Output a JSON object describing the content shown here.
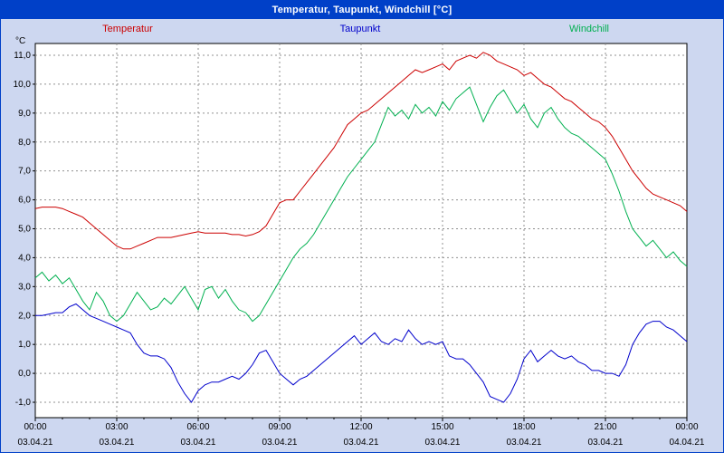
{
  "window": {
    "title": "Temperatur, Taupunkt, Windchill [°C]"
  },
  "colors": {
    "titlebar_bg": "#0040c8",
    "frame_bg": "#cdd7f0",
    "plot_bg": "#ffffff",
    "plot_border": "#000000",
    "grid": "#909090",
    "temperatur": "#cc0000",
    "taupunkt": "#0000cc",
    "windchill": "#00b050"
  },
  "legend": {
    "items": [
      {
        "label": "Temperatur",
        "color": "#cc0000"
      },
      {
        "label": "Taupunkt",
        "color": "#0000cc"
      },
      {
        "label": "Windchill",
        "color": "#00b050"
      }
    ]
  },
  "axes": {
    "unit_label": "°C"
  },
  "chart_data": {
    "type": "line",
    "title": "Temperatur, Taupunkt, Windchill [°C]",
    "grid": "dashed",
    "legend_position": "top",
    "ylim": [
      -1.0,
      11.0
    ],
    "y_tick_step": 1.0,
    "y_tick_labels": [
      "-1,0",
      "0,0",
      "1,0",
      "2,0",
      "3,0",
      "4,0",
      "5,0",
      "6,0",
      "7,0",
      "8,0",
      "9,0",
      "10,0",
      "11,0"
    ],
    "x_start_hour": 0,
    "x_step_hours": 0.25,
    "x_total_hours": 24,
    "x_ticks": [
      {
        "hour": 0,
        "time": "00:00",
        "date": "03.04.21"
      },
      {
        "hour": 3,
        "time": "03:00",
        "date": "03.04.21"
      },
      {
        "hour": 6,
        "time": "06:00",
        "date": "03.04.21"
      },
      {
        "hour": 9,
        "time": "09:00",
        "date": "03.04.21"
      },
      {
        "hour": 12,
        "time": "12:00",
        "date": "03.04.21"
      },
      {
        "hour": 15,
        "time": "15:00",
        "date": "03.04.21"
      },
      {
        "hour": 18,
        "time": "18:00",
        "date": "03.04.21"
      },
      {
        "hour": 21,
        "time": "21:00",
        "date": "03.04.21"
      },
      {
        "hour": 24,
        "time": "00:00",
        "date": "04.04.21"
      }
    ],
    "series": [
      {
        "name": "Temperatur",
        "color": "#cc0000",
        "values": [
          5.7,
          5.75,
          5.75,
          5.75,
          5.7,
          5.6,
          5.5,
          5.4,
          5.2,
          5.0,
          4.8,
          4.6,
          4.4,
          4.3,
          4.3,
          4.4,
          4.5,
          4.6,
          4.7,
          4.7,
          4.7,
          4.75,
          4.8,
          4.85,
          4.9,
          4.85,
          4.85,
          4.85,
          4.85,
          4.8,
          4.8,
          4.75,
          4.8,
          4.9,
          5.1,
          5.5,
          5.9,
          6.0,
          6.0,
          6.3,
          6.6,
          6.9,
          7.2,
          7.5,
          7.8,
          8.2,
          8.6,
          8.8,
          9.0,
          9.1,
          9.3,
          9.5,
          9.7,
          9.9,
          10.1,
          10.3,
          10.5,
          10.4,
          10.5,
          10.6,
          10.7,
          10.5,
          10.8,
          10.9,
          11.0,
          10.9,
          11.1,
          11.0,
          10.8,
          10.7,
          10.6,
          10.5,
          10.3,
          10.4,
          10.2,
          10.0,
          9.9,
          9.7,
          9.5,
          9.4,
          9.2,
          9.0,
          8.8,
          8.7,
          8.5,
          8.2,
          7.8,
          7.4,
          7.0,
          6.7,
          6.4,
          6.2,
          6.1,
          6.0,
          5.9,
          5.8,
          5.6
        ]
      },
      {
        "name": "Taupunkt",
        "color": "#0000cc",
        "values": [
          2.0,
          2.0,
          2.05,
          2.1,
          2.1,
          2.3,
          2.4,
          2.2,
          2.0,
          1.9,
          1.8,
          1.7,
          1.6,
          1.5,
          1.4,
          1.0,
          0.7,
          0.6,
          0.6,
          0.5,
          0.2,
          -0.3,
          -0.7,
          -1.0,
          -0.6,
          -0.4,
          -0.3,
          -0.3,
          -0.2,
          -0.1,
          -0.2,
          0.0,
          0.3,
          0.7,
          0.8,
          0.4,
          0.0,
          -0.2,
          -0.4,
          -0.2,
          -0.1,
          0.1,
          0.3,
          0.5,
          0.7,
          0.9,
          1.1,
          1.3,
          1.0,
          1.2,
          1.4,
          1.1,
          1.0,
          1.2,
          1.1,
          1.5,
          1.2,
          1.0,
          1.1,
          1.0,
          1.1,
          0.6,
          0.5,
          0.5,
          0.3,
          0.0,
          -0.3,
          -0.8,
          -0.9,
          -1.0,
          -0.7,
          -0.2,
          0.5,
          0.8,
          0.4,
          0.6,
          0.8,
          0.6,
          0.5,
          0.6,
          0.4,
          0.3,
          0.1,
          0.1,
          0.0,
          0.0,
          -0.1,
          0.3,
          1.0,
          1.4,
          1.7,
          1.8,
          1.8,
          1.6,
          1.5,
          1.3,
          1.1
        ]
      },
      {
        "name": "Windchill",
        "color": "#00b050",
        "values": [
          3.3,
          3.5,
          3.2,
          3.4,
          3.1,
          3.3,
          2.9,
          2.5,
          2.2,
          2.8,
          2.5,
          2.0,
          1.8,
          2.0,
          2.4,
          2.8,
          2.5,
          2.2,
          2.3,
          2.6,
          2.4,
          2.7,
          3.0,
          2.6,
          2.2,
          2.9,
          3.0,
          2.6,
          2.9,
          2.5,
          2.2,
          2.1,
          1.8,
          2.0,
          2.4,
          2.8,
          3.2,
          3.6,
          4.0,
          4.3,
          4.5,
          4.8,
          5.2,
          5.6,
          6.0,
          6.4,
          6.8,
          7.1,
          7.4,
          7.7,
          8.0,
          8.6,
          9.2,
          8.9,
          9.1,
          8.8,
          9.3,
          9.0,
          9.2,
          8.9,
          9.4,
          9.1,
          9.5,
          9.7,
          9.9,
          9.3,
          8.7,
          9.2,
          9.6,
          9.8,
          9.4,
          9.0,
          9.3,
          8.8,
          8.5,
          9.0,
          9.2,
          8.8,
          8.5,
          8.3,
          8.2,
          8.0,
          7.8,
          7.6,
          7.4,
          6.9,
          6.3,
          5.6,
          5.0,
          4.7,
          4.4,
          4.6,
          4.3,
          4.0,
          4.2,
          3.9,
          3.7
        ]
      }
    ]
  }
}
